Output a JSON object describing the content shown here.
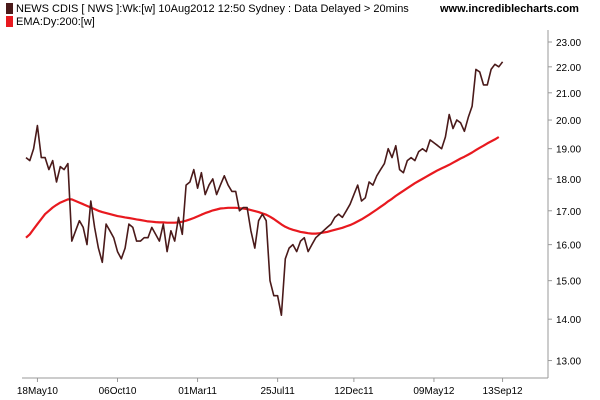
{
  "header": {
    "line1": "NEWS CDIS [ NWS ]:Wk:[w]  10Aug2012 12:50 Sydney : Data Delayed > 20mins",
    "site": "www.incrediblecharts.com",
    "line2": "EMA:Dy:200:[w]"
  },
  "colors": {
    "price": "#4a1a1a",
    "ema": "#e8191f",
    "axis": "#999999",
    "legend_price": "#4a1a1a",
    "legend_ema": "#e8191f"
  },
  "chart_data": {
    "type": "line",
    "title": "",
    "xlabel": "",
    "ylabel": "",
    "ylim": [
      12.6,
      23.5
    ],
    "y_log_scale": true,
    "yticks": [
      13,
      14,
      15,
      16,
      17,
      18,
      19,
      20,
      21,
      22,
      23
    ],
    "ytick_labels": [
      "13.00",
      "14.00",
      "15.00",
      "16.00",
      "17.00",
      "18.00",
      "19.00",
      "20.00",
      "21.00",
      "22.00",
      "23.00"
    ],
    "x_range_index": [
      0,
      128
    ],
    "xticks": [
      {
        "index": 3,
        "label": "18May10"
      },
      {
        "index": 24,
        "label": "06Oct10"
      },
      {
        "index": 45,
        "label": "01Mar11"
      },
      {
        "index": 66,
        "label": "25Jul11"
      },
      {
        "index": 86,
        "label": "12Dec11"
      },
      {
        "index": 107,
        "label": "09May12"
      },
      {
        "index": 125,
        "label": "13Sep12"
      }
    ],
    "grid": false,
    "legend": "top-left",
    "series": [
      {
        "name": "NEWS CDIS [ NWS ]:Wk:[w]",
        "values": [
          18.7,
          18.6,
          19.0,
          19.8,
          18.7,
          18.7,
          18.3,
          18.6,
          17.9,
          18.4,
          18.3,
          18.5,
          16.1,
          16.4,
          16.7,
          16.5,
          16.0,
          17.3,
          16.5,
          15.9,
          15.5,
          16.6,
          16.4,
          16.2,
          15.8,
          15.6,
          15.9,
          16.6,
          16.5,
          16.1,
          16.1,
          16.2,
          16.2,
          16.5,
          16.3,
          16.1,
          16.6,
          15.8,
          16.4,
          16.1,
          16.8,
          16.3,
          17.8,
          17.9,
          18.3,
          17.7,
          18.2,
          17.5,
          17.8,
          18.0,
          17.5,
          17.8,
          18.1,
          17.8,
          17.6,
          17.6,
          17.0,
          17.1,
          17.1,
          16.4,
          15.9,
          16.7,
          16.9,
          16.7,
          15.0,
          14.6,
          14.6,
          14.1,
          15.6,
          15.9,
          16.0,
          15.8,
          16.1,
          16.2,
          15.8,
          16.0,
          16.2,
          16.3,
          16.4,
          16.5,
          16.6,
          16.8,
          16.9,
          16.8,
          17.0,
          17.2,
          17.5,
          17.8,
          17.3,
          17.4,
          17.9,
          17.8,
          18.1,
          18.3,
          18.5,
          19.0,
          18.7,
          19.1,
          18.3,
          18.2,
          18.6,
          18.7,
          18.6,
          18.9,
          19.0,
          18.9,
          19.3,
          19.2,
          19.1,
          19.0,
          19.4,
          20.2,
          19.7,
          20.0,
          19.9,
          19.6,
          20.1,
          20.5,
          21.9,
          21.8,
          21.3,
          21.3,
          21.9,
          22.1,
          22.0,
          22.2
        ]
      },
      {
        "name": "EMA:Dy:200:[w]",
        "values": [
          16.2,
          16.3,
          16.45,
          16.6,
          16.75,
          16.9,
          17.0,
          17.1,
          17.18,
          17.25,
          17.3,
          17.35,
          17.35,
          17.3,
          17.25,
          17.2,
          17.15,
          17.1,
          17.05,
          17.0,
          16.96,
          16.93,
          16.9,
          16.87,
          16.84,
          16.82,
          16.8,
          16.78,
          16.76,
          16.74,
          16.72,
          16.7,
          16.68,
          16.67,
          16.66,
          16.65,
          16.65,
          16.64,
          16.64,
          16.64,
          16.65,
          16.67,
          16.7,
          16.74,
          16.78,
          16.83,
          16.88,
          16.93,
          16.97,
          17.01,
          17.04,
          17.07,
          17.08,
          17.09,
          17.09,
          17.09,
          17.08,
          17.07,
          17.05,
          17.02,
          16.99,
          16.96,
          16.92,
          16.88,
          16.82,
          16.75,
          16.67,
          16.59,
          16.52,
          16.47,
          16.43,
          16.4,
          16.37,
          16.35,
          16.33,
          16.32,
          16.32,
          16.33,
          16.35,
          16.37,
          16.4,
          16.43,
          16.46,
          16.49,
          16.53,
          16.57,
          16.62,
          16.68,
          16.74,
          16.81,
          16.88,
          16.96,
          17.04,
          17.12,
          17.2,
          17.29,
          17.37,
          17.46,
          17.54,
          17.62,
          17.7,
          17.78,
          17.86,
          17.93,
          18.0,
          18.07,
          18.14,
          18.21,
          18.28,
          18.34,
          18.4,
          18.46,
          18.53,
          18.6,
          18.67,
          18.73,
          18.8,
          18.87,
          18.95,
          19.03,
          19.1,
          19.18,
          19.25,
          19.32,
          19.4
        ]
      }
    ]
  }
}
